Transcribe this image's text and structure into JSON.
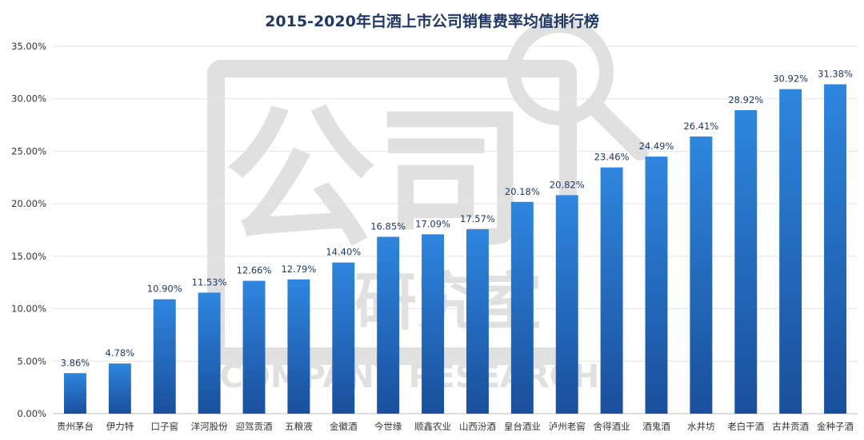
{
  "chart_data": {
    "type": "bar",
    "title": "2015-2020年白酒上市公司销售费率均值排行榜",
    "categories": [
      "贵州茅台",
      "伊力特",
      "口子窖",
      "洋河股份",
      "迎驾贡酒",
      "五粮液",
      "金徽酒",
      "今世缘",
      "顺鑫农业",
      "山西汾酒",
      "皇台酒业",
      "泸州老窖",
      "舍得酒业",
      "酒鬼酒",
      "水井坊",
      "老白干酒",
      "古井贡酒",
      "金种子酒"
    ],
    "values": [
      3.86,
      4.78,
      10.9,
      11.53,
      12.66,
      12.79,
      14.4,
      16.85,
      17.09,
      17.57,
      20.18,
      20.82,
      23.46,
      24.49,
      26.41,
      28.92,
      30.92,
      31.38
    ],
    "data_labels": [
      "3.86%",
      "4.78%",
      "10.90%",
      "11.53%",
      "12.66%",
      "12.79%",
      "14.40%",
      "16.85%",
      "17.09%",
      "17.57%",
      "20.18%",
      "20.82%",
      "23.46%",
      "24.49%",
      "26.41%",
      "28.92%",
      "30.92%",
      "31.38%"
    ],
    "yticks": [
      "0.00%",
      "5.00%",
      "10.00%",
      "15.00%",
      "20.00%",
      "25.00%",
      "30.00%",
      "35.00%"
    ],
    "ylim": [
      0,
      35
    ],
    "xlabel": "",
    "ylabel": "",
    "grid": true,
    "bar_color_top": "#2e86de",
    "bar_color_bottom": "#1a4f9c"
  },
  "watermark": {
    "main": "公司",
    "sub": "研究室",
    "en": "COMPANY RESEARCH",
    "color": "#bfbfbf"
  }
}
